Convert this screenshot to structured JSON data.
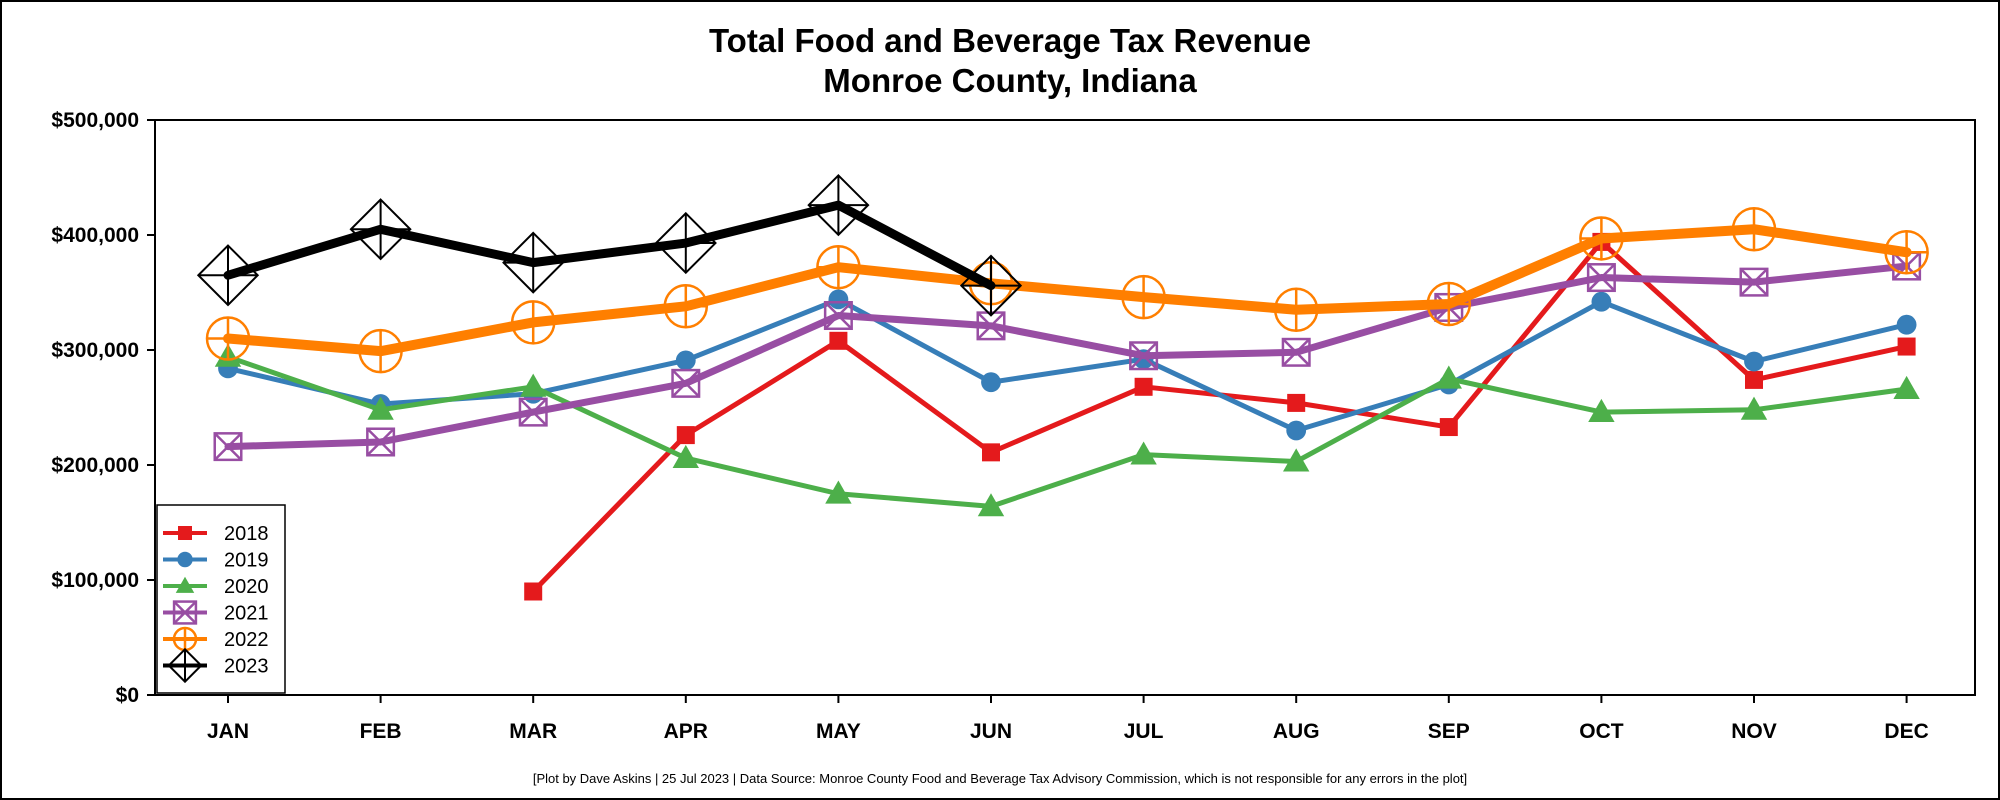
{
  "chart_data": {
    "type": "line",
    "title": "Total Food and Beverage Tax Revenue",
    "subtitle": "Monroe County, Indiana",
    "xlabel": "",
    "ylabel": "",
    "categories": [
      "JAN",
      "FEB",
      "MAR",
      "APR",
      "MAY",
      "JUN",
      "JUL",
      "AUG",
      "SEP",
      "OCT",
      "NOV",
      "DEC"
    ],
    "ylim": [
      0,
      500000
    ],
    "yticks": [
      0,
      100000,
      200000,
      300000,
      400000,
      500000
    ],
    "ytick_labels": [
      "$0",
      "$100,000",
      "$200,000",
      "$300,000",
      "$400,000",
      "$500,000"
    ],
    "grid": false,
    "legend_position": "bottom-left",
    "series": [
      {
        "name": "2018",
        "color": "#e41a1c",
        "marker": "square",
        "values": [
          null,
          null,
          90000,
          226000,
          308000,
          211000,
          268000,
          254000,
          233000,
          394000,
          274000,
          303000
        ]
      },
      {
        "name": "2019",
        "color": "#377eb8",
        "marker": "circle",
        "values": [
          284000,
          253000,
          262000,
          291000,
          344000,
          272000,
          292000,
          230000,
          270000,
          342000,
          290000,
          322000
        ]
      },
      {
        "name": "2020",
        "color": "#4daf4a",
        "marker": "triangle",
        "values": [
          294000,
          248000,
          268000,
          206000,
          175000,
          164000,
          209000,
          203000,
          275000,
          246000,
          248000,
          266000
        ]
      },
      {
        "name": "2021",
        "color": "#984ea3",
        "marker": "boxed-x",
        "values": [
          216000,
          220000,
          246000,
          271000,
          330000,
          321000,
          295000,
          298000,
          337000,
          363000,
          359000,
          373000
        ]
      },
      {
        "name": "2022",
        "color": "#ff7f00",
        "marker": "circle-plus",
        "values": [
          310000,
          299000,
          324000,
          338000,
          372000,
          358000,
          346000,
          335000,
          340000,
          397000,
          405000,
          385000
        ]
      },
      {
        "name": "2023",
        "color": "#000000",
        "marker": "diamond-plus",
        "values": [
          365000,
          405000,
          376000,
          393000,
          426000,
          356000,
          null,
          null,
          null,
          null,
          null,
          null
        ]
      }
    ]
  },
  "caption": "[Plot by Dave Askins | 25 Jul 2023 | Data Source: Monroe County Food and Beverage Tax Advisory Commission, which is not responsible for any errors in the plot]"
}
